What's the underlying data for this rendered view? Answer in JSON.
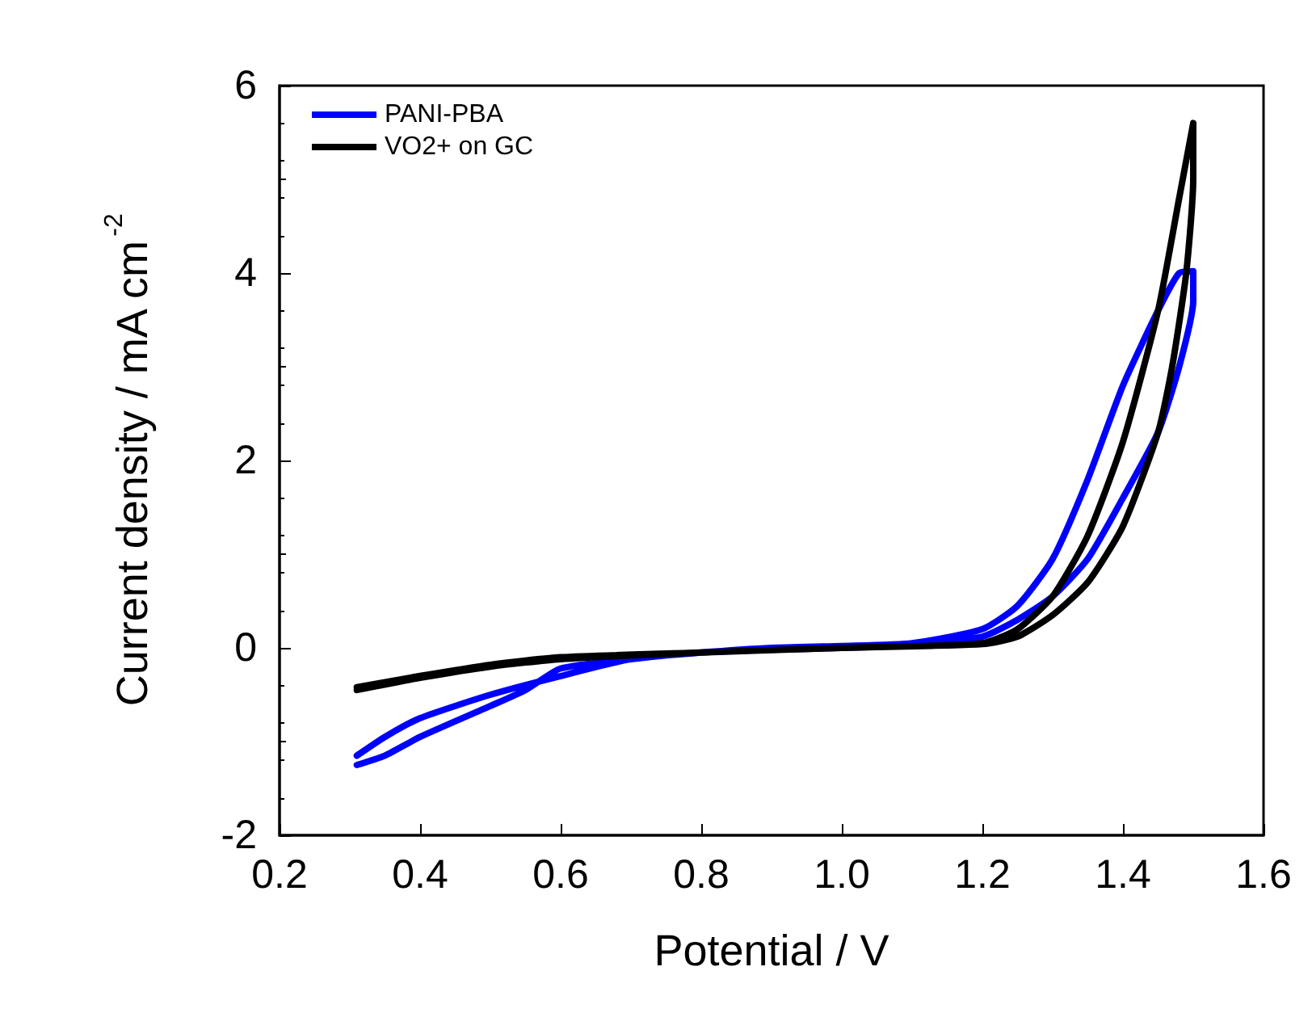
{
  "chart_data": {
    "type": "line",
    "xlabel": "Potential / V",
    "ylabel": "Current density / mA cm$^{-2}$",
    "xlim": [
      0.2,
      1.6
    ],
    "xticks": [
      0.2,
      0.4,
      0.6,
      0.8,
      {
        "value": 1,
        "label": "1.0"
      },
      1.2,
      1.4,
      1.6
    ],
    "ylim": [
      -2,
      6
    ],
    "yticks": [
      -2,
      0,
      2,
      4,
      6
    ],
    "legend": "top left",
    "grid": false,
    "marker": "none",
    "line_style": "solid",
    "series": [
      {
        "name": "PANI-PBA",
        "color": "#0000ff",
        "x": [
          0.31,
          0.35,
          0.4,
          0.5,
          0.6,
          0.7,
          0.8,
          0.9,
          1.0,
          1.1,
          1.2,
          1.25,
          1.3,
          1.35,
          1.4,
          1.45,
          1.48,
          1.5,
          1.5,
          1.48,
          1.45,
          1.4,
          1.35,
          1.3,
          1.25,
          1.2,
          1.1,
          1.0,
          0.9,
          0.8,
          0.7,
          0.6,
          0.55,
          0.5,
          0.4,
          0.35,
          0.31
        ],
        "values": [
          -1.15,
          -0.95,
          -0.75,
          -0.5,
          -0.3,
          -0.12,
          -0.05,
          0,
          0.02,
          0.05,
          0.2,
          0.45,
          0.95,
          1.8,
          2.8,
          3.6,
          4.0,
          4.02,
          3.7,
          3.0,
          2.3,
          1.6,
          0.95,
          0.55,
          0.3,
          0.12,
          0.03,
          0,
          -0.02,
          -0.05,
          -0.12,
          -0.22,
          -0.45,
          -0.62,
          -0.95,
          -1.15,
          -1.25
        ]
      },
      {
        "name": "VO2+ on GC",
        "color": "#000000",
        "x": [
          0.31,
          0.4,
          0.5,
          0.6,
          0.8,
          1.0,
          1.2,
          1.25,
          1.3,
          1.35,
          1.4,
          1.45,
          1.48,
          1.5,
          1.5,
          1.49,
          1.47,
          1.45,
          1.4,
          1.35,
          1.3,
          1.25,
          1.2,
          1.0,
          0.8,
          0.6,
          0.5,
          0.4,
          0.31
        ],
        "values": [
          -0.45,
          -0.32,
          -0.2,
          -0.12,
          -0.05,
          0,
          0.05,
          0.2,
          0.55,
          1.2,
          2.2,
          3.6,
          4.8,
          5.6,
          5.0,
          4.0,
          3.0,
          2.3,
          1.3,
          0.7,
          0.35,
          0.12,
          0.04,
          0,
          -0.05,
          -0.1,
          -0.18,
          -0.3,
          -0.42
        ]
      }
    ]
  }
}
